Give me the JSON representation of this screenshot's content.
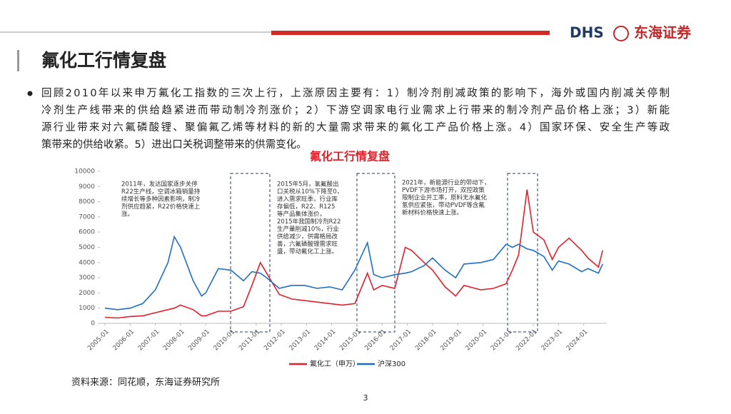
{
  "header": {
    "title": "氟化工行情复盘",
    "logo_en": "DHS",
    "logo_cn": "东海证券"
  },
  "bullet_lines": [
    "回顾2010年以来申万氟化工指数的三次上行，上涨原因主要有：1）制冷剂削减政策的影响下，海外或国内削减关停制",
    "冷剂生产线带来的供给趋紧进而带动制冷剂涨价；2）下游空调家电行业需求上行带来的制冷剂产品价格上涨；3）新能",
    "源行业带来对六氟磷酸锂、聚偏氟乙烯等材料的新的大量需求带来的氟化工产品价格上涨。4）国家环保、安全生产等政",
    "策带来的供给收紧。5）进出口关税调整带来的供需变化。"
  ],
  "source": "资料来源：同花顺，东海证券研究所",
  "page_number": "3",
  "chart_data": {
    "type": "line",
    "title": "氟化工行情复盘",
    "x": [
      "2005-01",
      "2005-07",
      "2006-01",
      "2006-07",
      "2007-01",
      "2007-07",
      "2007-10",
      "2008-01",
      "2008-07",
      "2008-11",
      "2009-01",
      "2009-07",
      "2010-01",
      "2010-07",
      "2010-11",
      "2011-03",
      "2011-06",
      "2011-12",
      "2012-06",
      "2012-12",
      "2013-06",
      "2013-12",
      "2014-06",
      "2014-12",
      "2015-06",
      "2015-09",
      "2016-01",
      "2016-07",
      "2016-12",
      "2017-03",
      "2017-09",
      "2018-01",
      "2018-07",
      "2018-12",
      "2019-04",
      "2019-12",
      "2020-06",
      "2020-12",
      "2021-03",
      "2021-06",
      "2021-10",
      "2022-01",
      "2022-06",
      "2022-10",
      "2023-01",
      "2023-06",
      "2023-12",
      "2024-03",
      "2024-08",
      "2024-10"
    ],
    "series": [
      {
        "name": "氟化工（申万）",
        "color": "#e0202a",
        "values": [
          400,
          350,
          450,
          500,
          700,
          900,
          1000,
          1200,
          900,
          500,
          500,
          800,
          800,
          1100,
          2500,
          4000,
          3300,
          1900,
          1600,
          1500,
          1400,
          1300,
          1200,
          1300,
          3300,
          2200,
          2500,
          2300,
          5000,
          4800,
          4000,
          3500,
          2400,
          1800,
          2500,
          2200,
          2300,
          2600,
          3500,
          4500,
          8800,
          6000,
          5500,
          4200,
          5000,
          5600,
          4800,
          4300,
          3700,
          4800
        ]
      },
      {
        "name": "沪深300",
        "color": "#1f6fc0",
        "values": [
          1000,
          900,
          1000,
          1300,
          2200,
          4000,
          5700,
          5000,
          2800,
          1800,
          2000,
          3600,
          3500,
          2800,
          3400,
          3300,
          3000,
          2300,
          2500,
          2500,
          2300,
          2400,
          2200,
          3500,
          5300,
          3200,
          3000,
          3200,
          3300,
          3400,
          3800,
          4300,
          3500,
          3000,
          3900,
          4000,
          4200,
          5200,
          5000,
          5200,
          4900,
          4800,
          4400,
          3500,
          4100,
          3900,
          3400,
          3600,
          3300,
          3900
        ]
      }
    ],
    "ylim": [
      0,
      10000
    ],
    "yticks": [
      0,
      1000,
      2000,
      3000,
      4000,
      5000,
      6000,
      7000,
      8000,
      9000,
      10000
    ],
    "xticks": [
      "2005-01",
      "2006-01",
      "2007-01",
      "2008-01",
      "2009-01",
      "2010-01",
      "2011-01",
      "2012-01",
      "2013-01",
      "2014-01",
      "2015-01",
      "2016-01",
      "2017-01",
      "2018-01",
      "2019-01",
      "2020-01",
      "2021-01",
      "2022-01",
      "2023-01",
      "2024-01"
    ],
    "legend": "bottom",
    "annotations": [
      [
        "2011年，发达国家逐步关停",
        "R22生产线，空调冰箱销量持",
        "续增长等多种因素影响，制冷",
        "剂供应趋紧，R22价格快速上",
        "涨。"
      ],
      [
        "2015年5月，氢氟酸出",
        "口关税从10%下降至0，",
        "进入需求旺季，行业库",
        "存偏低，R22、R125",
        "等产品集体涨价，",
        "2015年我国制冷剂R22",
        "生产量削减10%，行业",
        "供给减少，供需格局改",
        "善，六氟磷酸锂需求旺",
        "盛，带动氟化工上涨。"
      ],
      [
        "2021年，新能源行业的带动下，",
        "PVDF下游市场打开，双控政策",
        "限制企业开工率，原料无水氟化",
        "氢供应紧张，带动PVDF等含氟",
        "新材料价格快速上涨。"
      ]
    ]
  }
}
